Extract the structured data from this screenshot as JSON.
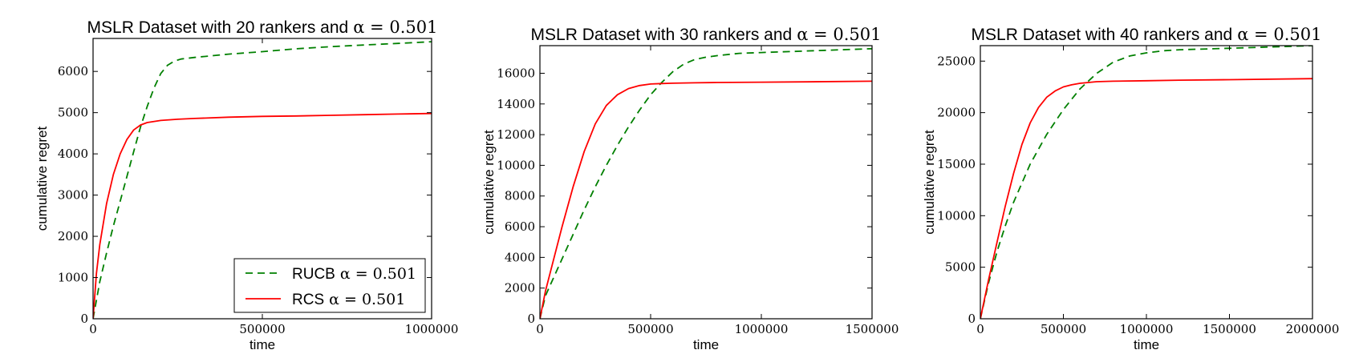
{
  "chart_data": [
    {
      "type": "line",
      "title": "MSLR Dataset with 20 rankers and",
      "title_math": "α = 0.501",
      "xlabel": "time",
      "ylabel": "cumulative regret",
      "xlim": [
        0,
        1000000
      ],
      "ylim": [
        0,
        6800
      ],
      "xticks": [
        0,
        500000,
        1000000
      ],
      "xtick_labels": [
        "0",
        "500000",
        "1000000"
      ],
      "yticks": [
        0,
        1000,
        2000,
        3000,
        4000,
        5000,
        6000
      ],
      "ytick_labels": [
        "0",
        "1000",
        "2000",
        "3000",
        "4000",
        "5000",
        "6000"
      ],
      "grid": false,
      "legend": {
        "placement": "bottom-right",
        "entries": [
          {
            "label": "RUCB",
            "math": "α = 0.501"
          },
          {
            "label": "RCS",
            "math": "α = 0.501"
          }
        ]
      },
      "series": [
        {
          "name": "RUCB α = 0.501",
          "color": "#008000",
          "dash": "dashed",
          "x": [
            0,
            20000,
            40000,
            60000,
            80000,
            100000,
            120000,
            140000,
            160000,
            180000,
            200000,
            220000,
            240000,
            260000,
            280000,
            300000,
            400000,
            500000,
            600000,
            700000,
            800000,
            900000,
            1000000
          ],
          "y": [
            0,
            900,
            1600,
            2250,
            2850,
            3450,
            4050,
            4650,
            5150,
            5600,
            5950,
            6150,
            6250,
            6300,
            6320,
            6340,
            6420,
            6480,
            6550,
            6600,
            6640,
            6680,
            6720
          ]
        },
        {
          "name": "RCS α = 0.501",
          "color": "#ff0000",
          "dash": "solid",
          "x": [
            0,
            10000,
            20000,
            40000,
            60000,
            80000,
            100000,
            120000,
            140000,
            160000,
            200000,
            250000,
            300000,
            400000,
            500000,
            600000,
            700000,
            800000,
            900000,
            1000000
          ],
          "y": [
            0,
            1100,
            1800,
            2800,
            3500,
            4000,
            4350,
            4580,
            4700,
            4760,
            4810,
            4840,
            4860,
            4890,
            4910,
            4920,
            4935,
            4950,
            4965,
            4980
          ]
        }
      ]
    },
    {
      "type": "line",
      "title": "MSLR Dataset with 30 rankers and",
      "title_math": "α = 0.501",
      "xlabel": "time",
      "ylabel": "cumulative regret",
      "xlim": [
        0,
        1500000
      ],
      "ylim": [
        0,
        17800
      ],
      "xticks": [
        0,
        500000,
        1000000,
        1500000
      ],
      "xtick_labels": [
        "0",
        "500000",
        "1000000",
        "1500000"
      ],
      "yticks": [
        0,
        2000,
        4000,
        6000,
        8000,
        10000,
        12000,
        14000,
        16000
      ],
      "ytick_labels": [
        "0",
        "2000",
        "4000",
        "6000",
        "8000",
        "10000",
        "12000",
        "14000",
        "16000"
      ],
      "grid": false,
      "series": [
        {
          "name": "RUCB",
          "color": "#008000",
          "dash": "dashed",
          "x": [
            0,
            25000,
            50000,
            100000,
            150000,
            200000,
            250000,
            300000,
            350000,
            400000,
            450000,
            500000,
            550000,
            600000,
            650000,
            700000,
            750000,
            800000,
            900000,
            1000000,
            1200000,
            1500000
          ],
          "y": [
            0,
            1500,
            2300,
            3900,
            5500,
            7100,
            8600,
            10000,
            11300,
            12500,
            13600,
            14600,
            15400,
            16100,
            16600,
            16900,
            17050,
            17150,
            17300,
            17350,
            17450,
            17600
          ]
        },
        {
          "name": "RCS",
          "color": "#ff0000",
          "dash": "solid",
          "x": [
            0,
            25000,
            50000,
            100000,
            150000,
            200000,
            250000,
            300000,
            350000,
            400000,
            450000,
            500000,
            550000,
            600000,
            700000,
            800000,
            1000000,
            1200000,
            1500000
          ],
          "y": [
            0,
            1800,
            3200,
            6000,
            8600,
            10900,
            12700,
            13900,
            14600,
            15000,
            15200,
            15300,
            15330,
            15350,
            15380,
            15400,
            15420,
            15440,
            15480
          ]
        }
      ]
    },
    {
      "type": "line",
      "title": "MSLR Dataset with 40 rankers and",
      "title_math": "α = 0.501",
      "xlabel": "time",
      "ylabel": "cumulative regret",
      "xlim": [
        0,
        2000000
      ],
      "ylim": [
        0,
        26500
      ],
      "xticks": [
        0,
        500000,
        1000000,
        1500000,
        2000000
      ],
      "xtick_labels": [
        "0",
        "500000",
        "1000000",
        "1500000",
        "2000000"
      ],
      "yticks": [
        0,
        5000,
        10000,
        15000,
        20000,
        25000
      ],
      "ytick_labels": [
        "0",
        "5000",
        "10000",
        "15000",
        "20000",
        "25000"
      ],
      "grid": false,
      "series": [
        {
          "name": "RUCB",
          "color": "#008000",
          "dash": "dashed",
          "x": [
            0,
            50000,
            100000,
            150000,
            200000,
            300000,
            400000,
            500000,
            600000,
            700000,
            800000,
            900000,
            1000000,
            1100000,
            1200000,
            1400000,
            1600000,
            1800000,
            2000000
          ],
          "y": [
            0,
            3500,
            6500,
            9000,
            11300,
            15000,
            17900,
            20300,
            22300,
            23800,
            24900,
            25500,
            25800,
            26000,
            26100,
            26200,
            26300,
            26400,
            26500
          ]
        },
        {
          "name": "RCS",
          "color": "#ff0000",
          "dash": "solid",
          "x": [
            0,
            50000,
            100000,
            150000,
            200000,
            250000,
            300000,
            350000,
            400000,
            450000,
            500000,
            550000,
            600000,
            700000,
            800000,
            1000000,
            1200000,
            1500000,
            2000000
          ],
          "y": [
            0,
            3800,
            7400,
            10900,
            14100,
            16900,
            19000,
            20500,
            21500,
            22100,
            22500,
            22700,
            22850,
            23000,
            23050,
            23100,
            23150,
            23200,
            23300
          ]
        }
      ]
    }
  ]
}
